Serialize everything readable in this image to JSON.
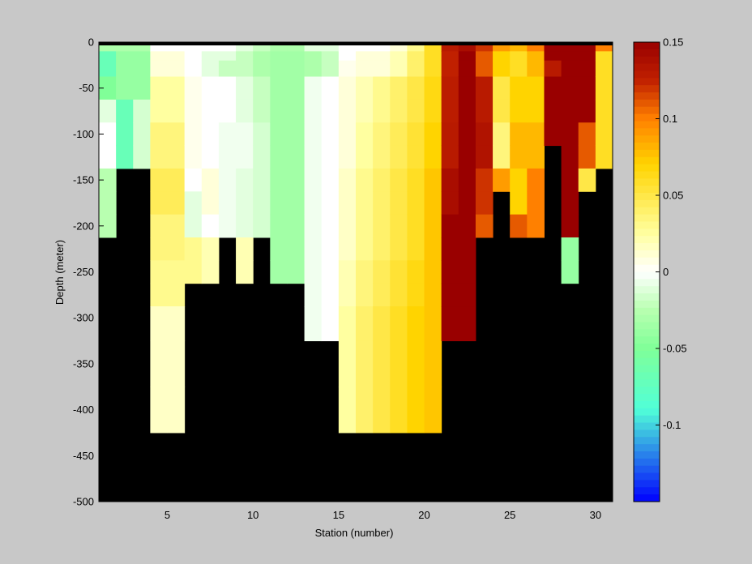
{
  "chart_data": {
    "type": "heatmap",
    "title": "",
    "xlabel": "Station (number)",
    "ylabel": "Depth (meter)",
    "xlim": [
      1,
      31
    ],
    "ylim": [
      -500,
      0
    ],
    "x_ticks": [
      5,
      10,
      15,
      20,
      25,
      30
    ],
    "y_ticks": [
      0,
      -50,
      -100,
      -150,
      -200,
      -250,
      -300,
      -350,
      -400,
      -450,
      -500
    ],
    "colorbar": {
      "min": -0.15,
      "max": 0.15,
      "ticks": [
        0.15,
        0.1,
        0.05,
        0,
        -0.05,
        -0.1
      ],
      "colormap": "blue-cyan-green-white-yellow-orange-darkred",
      "stops": [
        {
          "v": -0.15,
          "c": "#0000ff"
        },
        {
          "v": -0.09,
          "c": "#50ffd8"
        },
        {
          "v": -0.05,
          "c": "#80ff98"
        },
        {
          "v": -0.025,
          "c": "#b8ffb0"
        },
        {
          "v": 0.0,
          "c": "#ffffff"
        },
        {
          "v": 0.025,
          "c": "#ffffa0"
        },
        {
          "v": 0.07,
          "c": "#ffd400"
        },
        {
          "v": 0.1,
          "c": "#ff8000"
        },
        {
          "v": 0.125,
          "c": "#c02000"
        },
        {
          "v": 0.15,
          "c": "#990000"
        }
      ]
    },
    "nodata_color": "#000000",
    "depth_bins": [
      -5,
      -15,
      -25,
      -50,
      -75,
      -100,
      -125,
      -150,
      -175,
      -200,
      -225,
      -250,
      -275,
      -300,
      -350,
      -400
    ],
    "columns": [
      {
        "station": 1,
        "values": [
          -0.03,
          -0.07,
          -0.07,
          -0.05,
          -0.01,
          0.0,
          0.0,
          -0.025,
          -0.025,
          -0.025
        ]
      },
      {
        "station": 2,
        "values": [
          -0.03,
          -0.04,
          -0.04,
          -0.04,
          -0.07,
          -0.07,
          -0.07
        ]
      },
      {
        "station": 3,
        "values": [
          -0.03,
          -0.04,
          -0.04,
          -0.04,
          -0.015,
          -0.015,
          -0.015
        ]
      },
      {
        "station": 4,
        "values": [
          0.0,
          0.01,
          0.01,
          0.025,
          0.025,
          0.035,
          0.035,
          0.045,
          0.045,
          0.035,
          0.035,
          0.03,
          0.03,
          0.015,
          0.015,
          0.015
        ]
      },
      {
        "station": 5,
        "values": [
          0.0,
          0.01,
          0.01,
          0.025,
          0.025,
          0.035,
          0.035,
          0.045,
          0.045,
          0.035,
          0.035,
          0.03,
          0.03,
          0.015,
          0.015,
          0.015
        ]
      },
      {
        "station": 6,
        "values": [
          0.0,
          0.0,
          0.0,
          0.005,
          0.005,
          0.005,
          0.005,
          0.0,
          -0.01,
          -0.01,
          0.03,
          0.03
        ]
      },
      {
        "station": 7,
        "values": [
          0.0,
          -0.01,
          -0.01,
          0.0,
          0.0,
          0.0,
          0.0,
          0.01,
          0.01,
          0.0,
          0.02,
          0.02
        ]
      },
      {
        "station": 8,
        "values": [
          0.0,
          -0.01,
          -0.02,
          0.0,
          0.0,
          -0.005,
          -0.005,
          -0.005,
          -0.005,
          -0.005
        ]
      },
      {
        "station": 9,
        "values": [
          -0.01,
          -0.02,
          -0.02,
          -0.01,
          -0.01,
          -0.005,
          -0.005,
          -0.01,
          -0.01,
          -0.01,
          0.02,
          0.02
        ]
      },
      {
        "station": 10,
        "values": [
          -0.02,
          -0.03,
          -0.03,
          -0.02,
          -0.02,
          -0.015,
          -0.015,
          -0.015,
          -0.015,
          -0.015
        ]
      },
      {
        "station": 11,
        "values": [
          -0.03,
          -0.035,
          -0.035,
          -0.035,
          -0.035,
          -0.035,
          -0.035,
          -0.035,
          -0.035,
          -0.035,
          -0.035,
          -0.035
        ]
      },
      {
        "station": 12,
        "values": [
          -0.03,
          -0.035,
          -0.035,
          -0.035,
          -0.035,
          -0.035,
          -0.035,
          -0.035,
          -0.035,
          -0.035,
          -0.035,
          -0.035
        ]
      },
      {
        "station": 13,
        "values": [
          -0.01,
          -0.03,
          -0.03,
          -0.005,
          -0.005,
          -0.005,
          -0.005,
          -0.005,
          -0.005,
          -0.005,
          -0.005,
          -0.005,
          -0.005,
          -0.005
        ]
      },
      {
        "station": 14,
        "values": [
          -0.01,
          -0.02,
          -0.02,
          0.0,
          0.0,
          0.0,
          0.0,
          0.0,
          0.0,
          0.0,
          0.0,
          0.0,
          0.0,
          0.0
        ]
      },
      {
        "station": 15,
        "values": [
          0.0,
          0.0,
          0.005,
          0.01,
          0.01,
          0.01,
          0.01,
          0.015,
          0.015,
          0.015,
          0.015,
          0.02,
          0.02,
          0.025,
          0.025,
          0.025
        ]
      },
      {
        "station": 16,
        "values": [
          0.0,
          0.01,
          0.01,
          0.02,
          0.02,
          0.025,
          0.025,
          0.03,
          0.03,
          0.03,
          0.03,
          0.035,
          0.035,
          0.04,
          0.04,
          0.04
        ]
      },
      {
        "station": 17,
        "values": [
          0.0,
          0.01,
          0.01,
          0.03,
          0.03,
          0.035,
          0.035,
          0.04,
          0.04,
          0.04,
          0.04,
          0.045,
          0.045,
          0.05,
          0.05,
          0.05
        ]
      },
      {
        "station": 18,
        "values": [
          0.01,
          0.02,
          0.02,
          0.04,
          0.04,
          0.045,
          0.045,
          0.05,
          0.05,
          0.05,
          0.05,
          0.055,
          0.055,
          0.06,
          0.06,
          0.06
        ]
      },
      {
        "station": 19,
        "values": [
          0.03,
          0.04,
          0.04,
          0.05,
          0.05,
          0.055,
          0.055,
          0.06,
          0.06,
          0.06,
          0.06,
          0.065,
          0.065,
          0.07,
          0.07,
          0.07
        ]
      },
      {
        "station": 20,
        "values": [
          0.06,
          0.06,
          0.06,
          0.065,
          0.065,
          0.07,
          0.07,
          0.075,
          0.075,
          0.075,
          0.075,
          0.075,
          0.075,
          0.075,
          0.075,
          0.075
        ]
      },
      {
        "station": 21,
        "values": [
          0.13,
          0.125,
          0.125,
          0.128,
          0.128,
          0.13,
          0.13,
          0.14,
          0.14,
          0.15,
          0.15,
          0.15,
          0.15,
          0.15
        ]
      },
      {
        "station": 22,
        "values": [
          0.14,
          0.15,
          0.15,
          0.15,
          0.15,
          0.15,
          0.15,
          0.15,
          0.15,
          0.15,
          0.15,
          0.15,
          0.15,
          0.15
        ]
      },
      {
        "station": 23,
        "values": [
          0.12,
          0.11,
          0.11,
          0.13,
          0.13,
          0.135,
          0.135,
          0.12,
          0.12,
          0.11
        ]
      },
      {
        "station": 24,
        "values": [
          0.09,
          0.07,
          0.07,
          0.05,
          0.05,
          0.035,
          0.035,
          0.09
        ]
      },
      {
        "station": 25,
        "values": [
          0.08,
          0.06,
          0.06,
          0.07,
          0.07,
          0.08,
          0.08,
          0.07,
          0.07,
          0.11
        ]
      },
      {
        "station": 26,
        "values": [
          0.1,
          0.08,
          0.08,
          0.07,
          0.07,
          0.08,
          0.08,
          0.1,
          0.1,
          0.1
        ]
      },
      {
        "station": 27,
        "values": [
          0.15,
          0.15,
          0.13,
          0.15,
          0.15,
          0.15
        ]
      },
      {
        "station": 28,
        "values": [
          0.15,
          0.15,
          0.15,
          0.15,
          0.15,
          0.15,
          0.15,
          0.15,
          0.15,
          0.15,
          -0.04,
          -0.04
        ]
      },
      {
        "station": 29,
        "values": [
          0.15,
          0.15,
          0.15,
          0.15,
          0.15,
          0.11,
          0.11,
          0.05
        ]
      },
      {
        "station": 30,
        "values": [
          0.1,
          0.06,
          0.06,
          0.06,
          0.06,
          0.06,
          0.06
        ]
      }
    ]
  }
}
